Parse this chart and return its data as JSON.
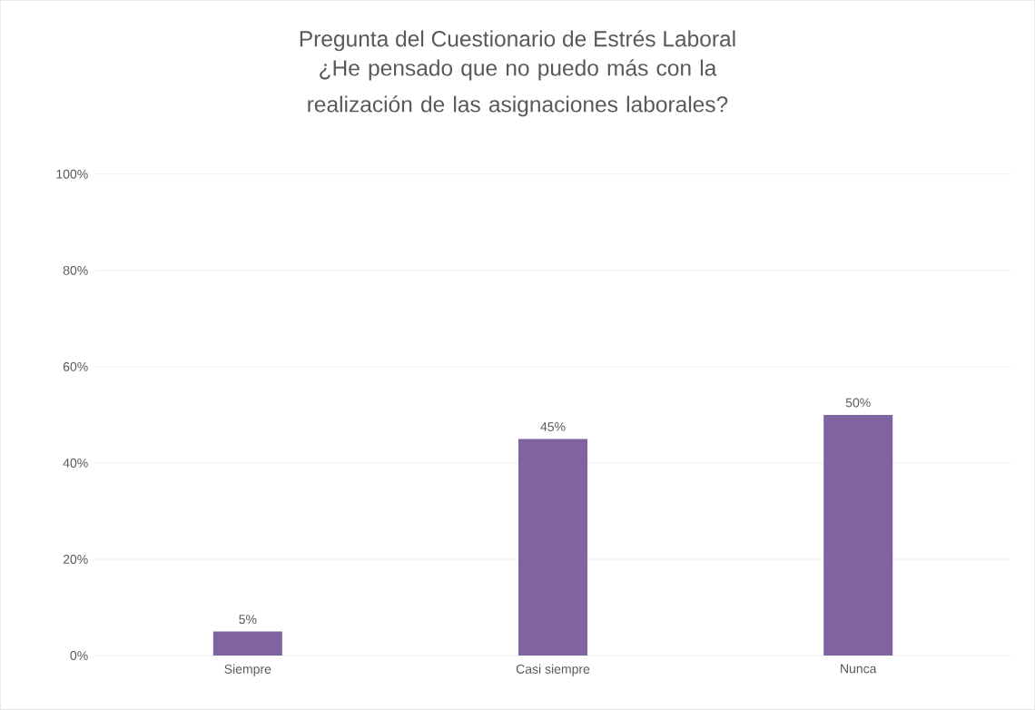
{
  "chart_data": {
    "type": "bar",
    "title": "Pregunta del Cuestionario de Estrés Laboral",
    "subtitle": "¿He pensado que no puedo más con la realización de las asignaciones laborales?",
    "categories": [
      "Siempre",
      "Casi siempre",
      "Nunca"
    ],
    "values": [
      5,
      45,
      50
    ],
    "value_labels": [
      "5%",
      "45%",
      "50%"
    ],
    "color": "#8064a2",
    "ylim": [
      0,
      100
    ],
    "yticks": [
      {
        "value": 0,
        "label": "0%"
      },
      {
        "value": 20,
        "label": "20%"
      },
      {
        "value": 40,
        "label": "40%"
      },
      {
        "value": 60,
        "label": "60%"
      },
      {
        "value": 80,
        "label": "80%"
      },
      {
        "value": 100,
        "label": "100%"
      }
    ],
    "grid": "y"
  }
}
